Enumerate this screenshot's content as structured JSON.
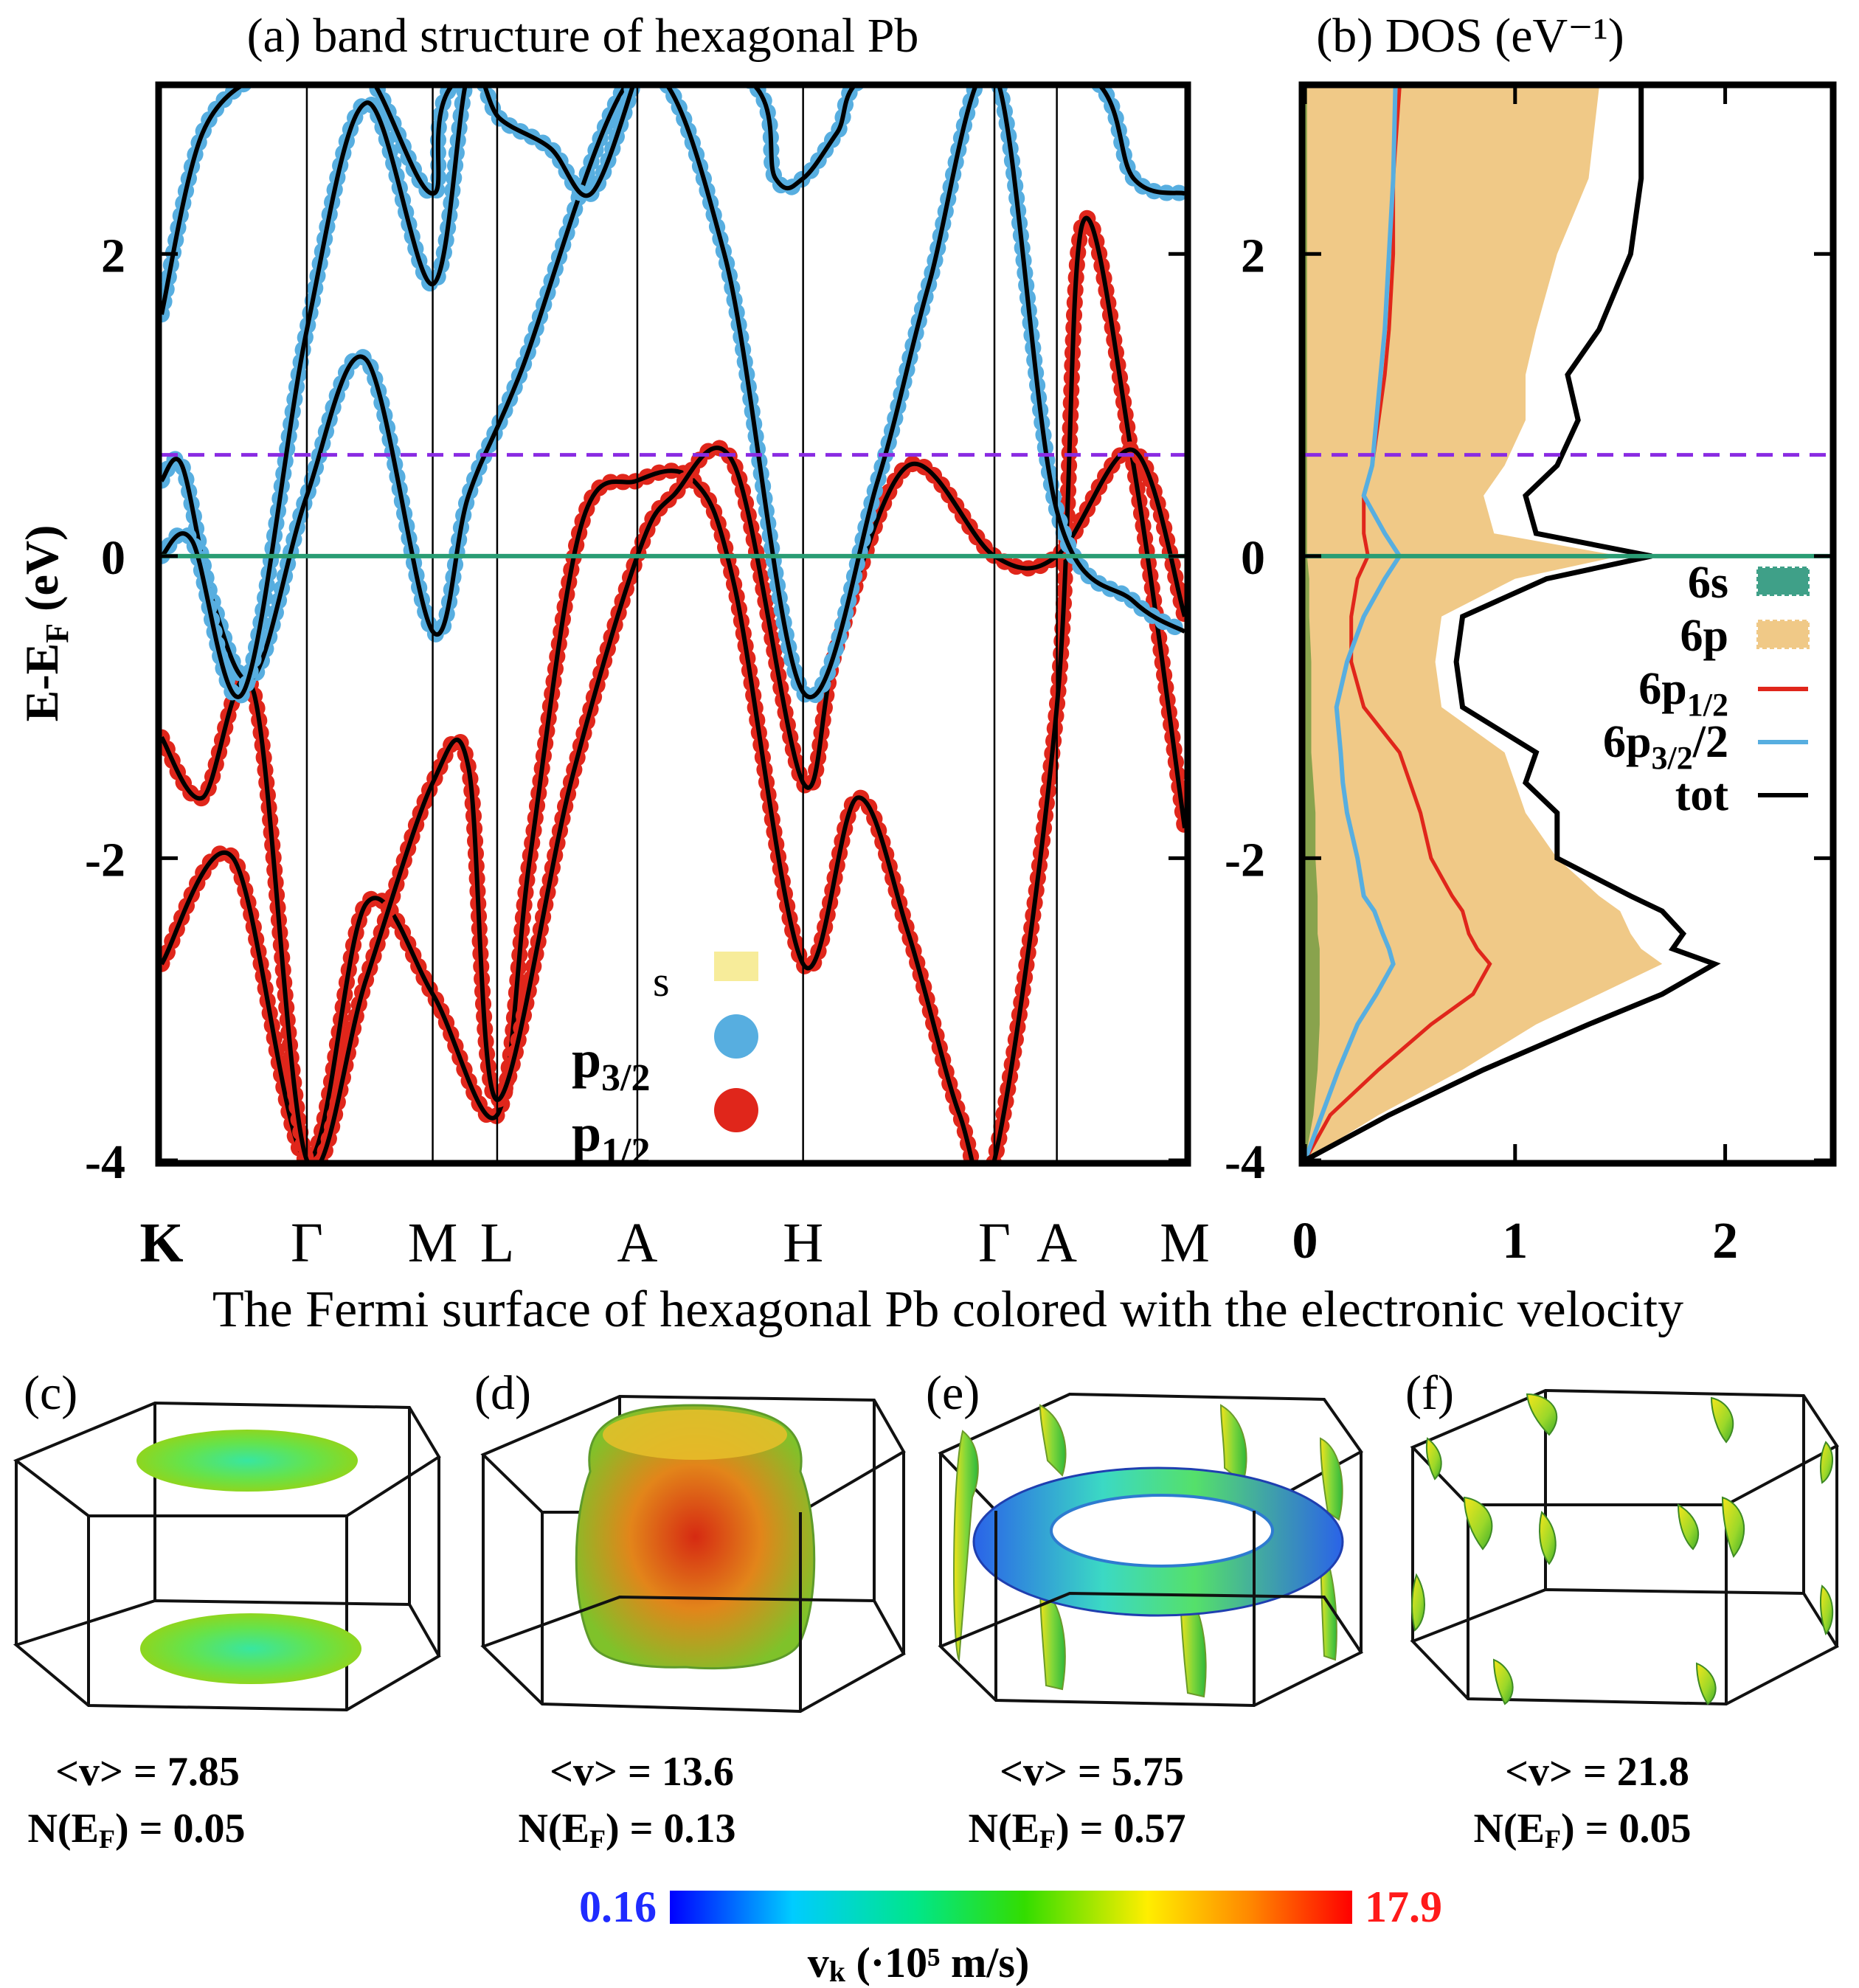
{
  "chart_data": [
    {
      "id": "a",
      "type": "line",
      "title": "(a) band structure of hexagonal Pb",
      "ylabel": "E-E",
      "ylabel_sub": "F",
      "ylabel_unit": " (eV)",
      "ylim": [
        -4,
        3.1
      ],
      "yticks": [
        {
          "v": 2,
          "label": "2"
        },
        {
          "v": 0,
          "label": "0"
        },
        {
          "v": -2,
          "label": "-2"
        },
        {
          "v": -4,
          "label": "-4"
        }
      ],
      "kpoints": [
        {
          "label": "K",
          "x": 0.0
        },
        {
          "label": "Γ",
          "x": 0.142
        },
        {
          "label": "M",
          "x": 0.265
        },
        {
          "label": "L",
          "x": 0.328
        },
        {
          "label": "A",
          "x": 0.465
        },
        {
          "label": "H",
          "x": 0.627
        },
        {
          "label": "Γ",
          "x": 0.814
        },
        {
          "label": "A",
          "x": 0.875
        },
        {
          "label": "M",
          "x": 1.0
        }
      ],
      "fermi_level": 0.0,
      "dashed_level": 0.67,
      "legend": [
        {
          "label": "s",
          "color": "#f7ec9a"
        },
        {
          "label": "p",
          "sub": "3/2",
          "color": "#57aee0"
        },
        {
          "label": "p",
          "sub": "1/2",
          "color": "#e0261b"
        }
      ],
      "series": [
        {
          "name": "band1",
          "x": [
            0.0,
            0.07,
            0.142,
            0.2,
            0.265,
            0.328,
            0.36,
            0.41,
            0.465,
            0.52,
            0.56,
            0.627,
            0.68,
            0.73,
            0.78,
            0.814,
            0.875,
            0.9,
            0.95,
            1.0
          ],
          "y": [
            -2.7,
            -2.0,
            -4.0,
            -2.3,
            -2.9,
            -3.7,
            -2.0,
            0.2,
            0.5,
            0.5,
            -0.2,
            -2.7,
            -1.6,
            -2.5,
            -3.7,
            -4.0,
            -1.0,
            2.2,
            0.6,
            -1.8
          ]
        },
        {
          "name": "band2",
          "x": [
            0.0,
            0.04,
            0.09,
            0.142,
            0.2,
            0.265,
            0.3,
            0.328,
            0.4,
            0.465,
            0.5,
            0.56,
            0.627,
            0.66,
            0.73,
            0.814,
            0.875,
            0.95,
            1.0
          ],
          "y": [
            -1.2,
            -1.6,
            -0.9,
            -4.0,
            -2.8,
            -1.5,
            -1.4,
            -3.6,
            -1.5,
            0.0,
            0.4,
            0.6,
            -1.5,
            -0.6,
            0.6,
            0.0,
            0.0,
            0.7,
            -0.4
          ]
        },
        {
          "name": "band3",
          "x": [
            0.0,
            0.02,
            0.05,
            0.09,
            0.142,
            0.2,
            0.265,
            0.3,
            0.35,
            0.465,
            0.55,
            0.627,
            0.7,
            0.75,
            0.814,
            0.875,
            0.95,
            1.0
          ],
          "y": [
            0.5,
            0.6,
            -0.3,
            -0.8,
            0.4,
            1.3,
            -0.5,
            0.4,
            1.2,
            3.2,
            2.0,
            -0.9,
            0.5,
            1.8,
            3.2,
            0.3,
            -0.3,
            -0.5
          ]
        },
        {
          "name": "band4",
          "x": [
            0.0,
            0.03,
            0.08,
            0.142,
            0.2,
            0.265,
            0.3,
            0.33,
            0.38,
            0.42,
            0.465
          ],
          "y": [
            0.0,
            0.1,
            -0.9,
            1.5,
            3.0,
            1.8,
            3.2,
            2.9,
            2.7,
            2.4,
            3.2
          ]
        },
        {
          "name": "band5",
          "x": [
            0.0,
            0.04,
            0.1,
            0.142,
            0.2,
            0.265,
            0.3,
            0.56,
            0.6,
            0.627,
            0.66,
            0.7,
            0.9,
            0.95,
            1.0
          ],
          "y": [
            1.6,
            2.8,
            3.2,
            3.2,
            3.2,
            2.4,
            3.2,
            3.2,
            2.5,
            2.5,
            2.8,
            3.2,
            3.2,
            2.5,
            2.4
          ]
        }
      ]
    },
    {
      "id": "b",
      "type": "area",
      "title": "(b) DOS (eV⁻¹)",
      "xlim": [
        0,
        2.5
      ],
      "xticks": [
        {
          "v": 0,
          "label": "0"
        },
        {
          "v": 1,
          "label": "1"
        },
        {
          "v": 2,
          "label": "2"
        }
      ],
      "ylim": [
        -4,
        3.1
      ],
      "yticks": [
        {
          "v": 2,
          "label": "2"
        },
        {
          "v": 0,
          "label": "0"
        },
        {
          "v": -2,
          "label": "-2"
        },
        {
          "v": -4,
          "label": "-4"
        }
      ],
      "fermi_level": 0.0,
      "dashed_level": 0.67,
      "legend": [
        {
          "label": "6s",
          "sub": "",
          "color": "#3fa088",
          "kind": "fill"
        },
        {
          "label": "6p",
          "sub": "",
          "color": "#f0c987",
          "kind": "fill"
        },
        {
          "label": "6p",
          "sub": "1/2",
          "color": "#e0261b",
          "kind": "line"
        },
        {
          "label": "6p",
          "sub": "3/2",
          "suffix": "/2",
          "color": "#57aee0",
          "kind": "line"
        },
        {
          "label": "tot",
          "sub": "",
          "color": "#000000",
          "kind": "line"
        }
      ],
      "energy": [
        -4.0,
        -3.7,
        -3.4,
        -3.1,
        -2.9,
        -2.7,
        -2.6,
        -2.5,
        -2.35,
        -2.25,
        -2.0,
        -1.7,
        -1.5,
        -1.3,
        -1.0,
        -0.7,
        -0.4,
        -0.15,
        0.0,
        0.15,
        0.4,
        0.6,
        0.9,
        1.2,
        1.5,
        2.0,
        2.5,
        3.1
      ],
      "series": [
        {
          "name": "6s",
          "values": [
            0.0,
            0.04,
            0.06,
            0.07,
            0.07,
            0.07,
            0.07,
            0.06,
            0.06,
            0.06,
            0.05,
            0.05,
            0.04,
            0.03,
            0.03,
            0.03,
            0.02,
            0.02,
            0.01,
            0.01,
            0.01,
            0.01,
            0.01,
            0.01,
            0.01,
            0.01,
            0.01,
            0.01
          ]
        },
        {
          "name": "6p",
          "values": [
            0.0,
            0.35,
            0.75,
            1.1,
            1.4,
            1.7,
            1.6,
            1.55,
            1.5,
            1.4,
            1.2,
            1.05,
            1.0,
            0.95,
            0.65,
            0.62,
            0.65,
            1.0,
            1.5,
            0.9,
            0.85,
            0.95,
            1.05,
            1.05,
            1.1,
            1.2,
            1.35,
            1.4
          ]
        },
        {
          "name": "6p1/2",
          "values": [
            0.0,
            0.12,
            0.35,
            0.6,
            0.8,
            0.88,
            0.82,
            0.78,
            0.75,
            0.7,
            0.6,
            0.55,
            0.5,
            0.45,
            0.28,
            0.22,
            0.22,
            0.25,
            0.3,
            0.28,
            0.28,
            0.32,
            0.35,
            0.38,
            0.4,
            0.42,
            0.42,
            0.45
          ]
        },
        {
          "name": "6p3/2/2",
          "values": [
            0.0,
            0.08,
            0.16,
            0.25,
            0.34,
            0.42,
            0.4,
            0.37,
            0.33,
            0.28,
            0.25,
            0.2,
            0.18,
            0.17,
            0.15,
            0.2,
            0.28,
            0.38,
            0.45,
            0.38,
            0.28,
            0.32,
            0.34,
            0.36,
            0.38,
            0.4,
            0.42,
            0.43
          ]
        },
        {
          "name": "tot",
          "values": [
            0.0,
            0.4,
            0.85,
            1.35,
            1.7,
            1.95,
            1.75,
            1.8,
            1.7,
            1.55,
            1.2,
            1.2,
            1.05,
            1.1,
            0.75,
            0.72,
            0.75,
            1.15,
            1.65,
            1.1,
            1.05,
            1.2,
            1.3,
            1.25,
            1.4,
            1.55,
            1.6,
            1.6
          ]
        }
      ]
    }
  ],
  "fermi_section": {
    "title": "The Fermi surface of hexagonal Pb colored with the electronic velocity",
    "panels": [
      {
        "label": "(c)",
        "v_text": "<v> = 7.85",
        "n_main": "N(E",
        "n_sub": "F",
        "n_tail": ") = 0.05",
        "shape": "disks"
      },
      {
        "label": "(d)",
        "v_text": "<v> = 13.6",
        "n_main": "N(E",
        "n_sub": "F",
        "n_tail": ") = 0.13",
        "shape": "barrel"
      },
      {
        "label": "(e)",
        "v_text": "<v> = 5.75",
        "n_main": "N(E",
        "n_sub": "F",
        "n_tail": ") = 0.57",
        "shape": "ring"
      },
      {
        "label": "(f)",
        "v_text": "<v> = 21.8",
        "n_main": "N(E",
        "n_sub": "F",
        "n_tail": ") = 0.05",
        "shape": "pockets"
      }
    ],
    "colorbar": {
      "min_label": "0.16",
      "max_label": "17.9",
      "min_color": "#1f2bff",
      "max_color": "#ff1a1a",
      "label_main": "v",
      "label_sub": "k",
      "label_tail": " (·10⁵ m/s)",
      "stops": [
        "#0000ff",
        "#00ccff",
        "#00e68a",
        "#33dd00",
        "#ffee00",
        "#ff8800",
        "#ff0000"
      ]
    }
  }
}
